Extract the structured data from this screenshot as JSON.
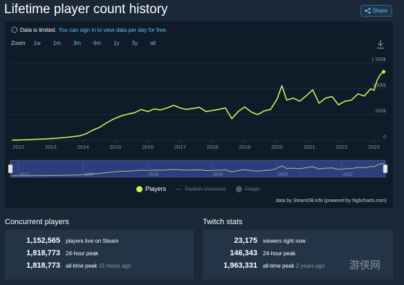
{
  "page": {
    "title": "Lifetime player count history",
    "share_label": "Share"
  },
  "notice": {
    "text": "Data is limited.",
    "link": "You can sign in to view data per day for free."
  },
  "zoom": {
    "label": "Zoom",
    "buttons": [
      "1w",
      "1m",
      "3m",
      "6m",
      "1y",
      "3y",
      "all"
    ]
  },
  "legend": {
    "players": "Players",
    "twitch": "Twitch Viewers",
    "flags": "Flags"
  },
  "credit": "data by SteamDB.info (powered by highcharts.com)",
  "colors": {
    "players": "#d3f05a",
    "background": "#1b2838",
    "panel": "#0f1b29",
    "navigator_fill": "#2d3d7d",
    "link": "#67c1f5"
  },
  "chart_data": {
    "type": "line",
    "title": "Lifetime player count history",
    "x_ticks": [
      "2012",
      "2013",
      "2014",
      "2015",
      "2016",
      "2017",
      "2018",
      "2019",
      "2020",
      "2021",
      "2022",
      "2023"
    ],
    "y_ticks": [
      "0",
      "500k",
      "1000k",
      "1 500k"
    ],
    "ylim": [
      0,
      1500000
    ],
    "xlim": [
      2011.75,
      2023.35
    ],
    "grid": true,
    "series": [
      {
        "name": "Players",
        "x": [
          2011.8,
          2012.0,
          2012.5,
          2013.0,
          2013.5,
          2013.9,
          2014.1,
          2014.3,
          2014.5,
          2014.7,
          2014.9,
          2015.0,
          2015.2,
          2015.4,
          2015.6,
          2015.8,
          2016.0,
          2016.2,
          2016.4,
          2016.6,
          2016.8,
          2017.0,
          2017.2,
          2017.4,
          2017.6,
          2017.8,
          2018.0,
          2018.2,
          2018.4,
          2018.6,
          2018.8,
          2019.0,
          2019.2,
          2019.4,
          2019.6,
          2019.8,
          2020.0,
          2020.15,
          2020.3,
          2020.5,
          2020.7,
          2020.9,
          2021.1,
          2021.3,
          2021.5,
          2021.7,
          2021.9,
          2022.1,
          2022.3,
          2022.5,
          2022.7,
          2022.9,
          2023.0,
          2023.1,
          2023.2,
          2023.3
        ],
        "values": [
          5000,
          10000,
          20000,
          35000,
          60000,
          90000,
          130000,
          200000,
          250000,
          330000,
          400000,
          430000,
          480000,
          510000,
          540000,
          600000,
          560000,
          610000,
          590000,
          630000,
          680000,
          630000,
          600000,
          620000,
          640000,
          560000,
          580000,
          600000,
          630000,
          420000,
          560000,
          650000,
          550000,
          500000,
          570000,
          600000,
          800000,
          1060000,
          780000,
          820000,
          760000,
          860000,
          980000,
          720000,
          820000,
          850000,
          690000,
          760000,
          780000,
          900000,
          860000,
          1000000,
          970000,
          1170000,
          1280000,
          1330000
        ]
      }
    ],
    "legend": [
      "Players",
      "Twitch Viewers",
      "Flags"
    ],
    "navigator_ticks": [
      "2012",
      "2014",
      "2016",
      "2018",
      "2020",
      "2022"
    ]
  },
  "concurrent": {
    "title": "Concurrent players",
    "rows": [
      {
        "value": "1,152,565",
        "label": "players live on Steam",
        "sub": ""
      },
      {
        "value": "1,818,773",
        "label": "24-hour peak",
        "sub": ""
      },
      {
        "value": "1,818,773",
        "label": "all-time peak",
        "sub": "15 hours ago"
      }
    ]
  },
  "twitch": {
    "title": "Twitch stats",
    "rows": [
      {
        "value": "23,175",
        "label": "viewers right now",
        "sub": ""
      },
      {
        "value": "146,343",
        "label": "24-hour peak",
        "sub": ""
      },
      {
        "value": "1,963,331",
        "label": "all-time peak",
        "sub": "2 years ago"
      }
    ]
  },
  "watermark": "游侠网"
}
